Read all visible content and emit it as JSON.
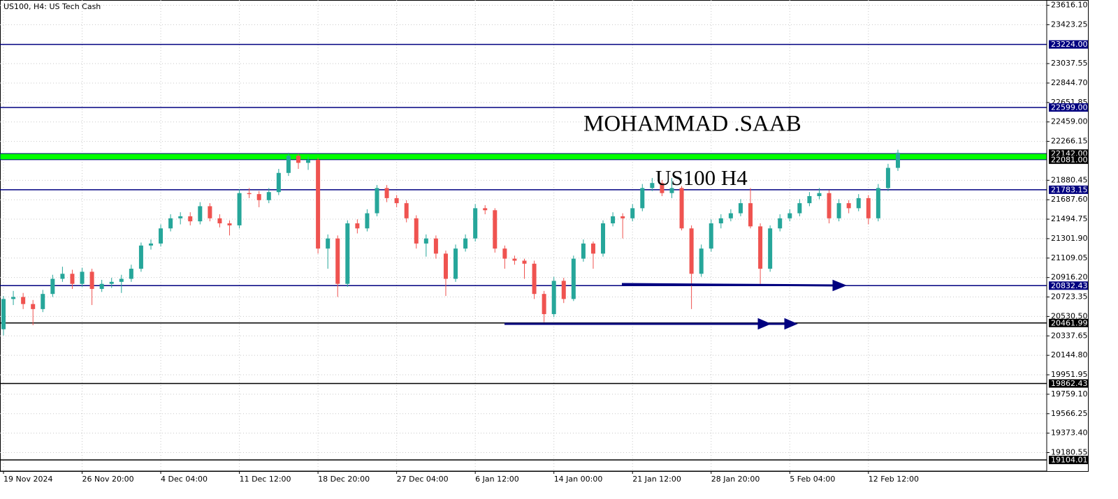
{
  "chart_data": {
    "type": "candlestick",
    "title": "US100, H4:  US Tech Cash",
    "annotations": [
      "MOHAMMAD .SAAB",
      "US100 H4"
    ],
    "up_color": "#26a69a",
    "down_color": "#ef5350",
    "grid": true,
    "ylim": [
      18993.7,
      23664.5
    ],
    "yticks": [
      {
        "value": 23616.1,
        "label": "23616.10"
      },
      23423.25,
      23037.55,
      {
        "value": 22844.7,
        "label": "22844.70"
      },
      22651.85,
      {
        "value": 22459,
        "label": "22459.00"
      },
      22266.15,
      21880.45,
      {
        "value": 21687.6,
        "label": "21687.60"
      },
      21494.75,
      {
        "value": 21301.9,
        "label": "21301.90"
      },
      21109.05,
      {
        "value": 20916.2,
        "label": "20916.20"
      },
      20723.35,
      {
        "value": 20530.5,
        "label": "20530.50"
      },
      20337.65,
      {
        "value": 20144.8,
        "label": "20144.80"
      },
      19951.95,
      {
        "value": 19759.1,
        "label": "19759.10"
      },
      19566.25,
      {
        "value": 19373.4,
        "label": "19373.40"
      },
      19180.55
    ],
    "levels": [
      {
        "value": 23224,
        "label": "23224.00",
        "color": "#000080"
      },
      {
        "value": 22599,
        "label": "22599.00",
        "color": "#000080"
      },
      {
        "value": 21783.15,
        "label": "21783.15",
        "color": "#000080"
      },
      {
        "value": 20832.43,
        "label": "20832.43",
        "color": "#000080"
      },
      {
        "value": 20461.99,
        "label": "20461.99",
        "color": "#000000"
      },
      {
        "value": 19862.43,
        "label": "19862.43",
        "color": "#000000"
      },
      {
        "value": 19104.01,
        "label": "19104.01",
        "color": "#000000"
      }
    ],
    "zone": {
      "low": {
        "value": 22081,
        "label": "22081.00"
      },
      "high": {
        "value": 22142,
        "label": "22142.00"
      },
      "color": "#00ff00"
    },
    "categories": [
      "19 Nov 2024",
      null,
      null,
      null,
      null,
      null,
      null,
      null,
      "26 Nov 20:00",
      null,
      null,
      null,
      null,
      null,
      null,
      null,
      "4 Dec 04:00",
      null,
      null,
      null,
      null,
      null,
      null,
      null,
      "11 Dec 12:00",
      null,
      null,
      null,
      null,
      null,
      null,
      null,
      "18 Dec 20:00",
      null,
      null,
      null,
      null,
      null,
      null,
      null,
      "27 Dec 04:00",
      null,
      null,
      null,
      null,
      null,
      null,
      null,
      "6 Jan 12:00",
      null,
      null,
      null,
      null,
      null,
      null,
      null,
      "14 Jan 00:00",
      null,
      null,
      null,
      null,
      null,
      null,
      null,
      "21 Jan 12:00",
      null,
      null,
      null,
      null,
      null,
      null,
      null,
      "28 Jan 20:00",
      null,
      null,
      null,
      null,
      null,
      null,
      null,
      "5 Feb 04:00",
      null,
      null,
      null,
      null,
      null,
      null,
      null,
      "12 Feb 12:00",
      null,
      null,
      null
    ],
    "ohlc": [
      [
        20400,
        20730,
        20340,
        20700
      ],
      [
        20700,
        20780,
        20640,
        20720
      ],
      [
        20720,
        20760,
        20600,
        20650
      ],
      [
        20650,
        20690,
        20440,
        20600
      ],
      [
        20600,
        20790,
        20570,
        20750
      ],
      [
        20750,
        20940,
        20720,
        20900
      ],
      [
        20900,
        21020,
        20870,
        20950
      ],
      [
        20950,
        20990,
        20800,
        20850
      ],
      [
        20850,
        21010,
        20820,
        20970
      ],
      [
        20970,
        21000,
        20640,
        20800
      ],
      [
        20800,
        20890,
        20770,
        20850
      ],
      [
        20850,
        20910,
        20810,
        20870
      ],
      [
        20870,
        20940,
        20760,
        20900
      ],
      [
        20900,
        21040,
        20870,
        21000
      ],
      [
        21000,
        21260,
        20970,
        21230
      ],
      [
        21230,
        21290,
        21190,
        21250
      ],
      [
        21250,
        21440,
        21220,
        21400
      ],
      [
        21400,
        21540,
        21370,
        21500
      ],
      [
        21500,
        21560,
        21440,
        21520
      ],
      [
        21520,
        21560,
        21430,
        21470
      ],
      [
        21470,
        21660,
        21440,
        21620
      ],
      [
        21620,
        21650,
        21470,
        21500
      ],
      [
        21500,
        21540,
        21410,
        21450
      ],
      [
        21450,
        21480,
        21330,
        21430
      ],
      [
        21430,
        21790,
        21400,
        21750
      ],
      [
        21750,
        21800,
        21700,
        21740
      ],
      [
        21740,
        21770,
        21610,
        21680
      ],
      [
        21680,
        21800,
        21650,
        21760
      ],
      [
        21760,
        21990,
        21730,
        21950
      ],
      [
        21950,
        22150,
        21920,
        22120
      ],
      [
        22120,
        22140,
        21990,
        22050
      ],
      [
        22050,
        22110,
        21980,
        22080
      ],
      [
        22080,
        22100,
        21150,
        21200
      ],
      [
        21200,
        21340,
        21000,
        21300
      ],
      [
        21300,
        21330,
        20720,
        20850
      ],
      [
        20850,
        21480,
        20820,
        21450
      ],
      [
        21450,
        21490,
        21350,
        21400
      ],
      [
        21400,
        21590,
        21370,
        21550
      ],
      [
        21550,
        21830,
        21520,
        21800
      ],
      [
        21800,
        21830,
        21660,
        21700
      ],
      [
        21700,
        21730,
        21610,
        21650
      ],
      [
        21650,
        21680,
        21460,
        21500
      ],
      [
        21500,
        21530,
        21200,
        21250
      ],
      [
        21250,
        21340,
        21120,
        21300
      ],
      [
        21300,
        21330,
        21100,
        21150
      ],
      [
        21150,
        21180,
        20730,
        20900
      ],
      [
        20900,
        21240,
        20870,
        21200
      ],
      [
        21200,
        21340,
        21170,
        21300
      ],
      [
        21300,
        21640,
        21270,
        21600
      ],
      [
        21600,
        21630,
        21540,
        21580
      ],
      [
        21580,
        21600,
        21160,
        21200
      ],
      [
        21200,
        21230,
        21000,
        21100
      ],
      [
        21100,
        21130,
        21040,
        21080
      ],
      [
        21080,
        21100,
        20900,
        21050
      ],
      [
        21050,
        21080,
        20700,
        20750
      ],
      [
        20750,
        20780,
        20470,
        20550
      ],
      [
        20550,
        20920,
        20520,
        20880
      ],
      [
        20880,
        20910,
        20660,
        20700
      ],
      [
        20700,
        21130,
        20680,
        21100
      ],
      [
        21100,
        21290,
        21070,
        21250
      ],
      [
        21250,
        21270,
        21000,
        21150
      ],
      [
        21150,
        21480,
        21120,
        21450
      ],
      [
        21450,
        21560,
        21420,
        21520
      ],
      [
        21520,
        21550,
        21300,
        21500
      ],
      [
        21500,
        21640,
        21470,
        21600
      ],
      [
        21600,
        21840,
        21570,
        21800
      ],
      [
        21800,
        21900,
        21770,
        21850
      ],
      [
        21850,
        21880,
        21720,
        21750
      ],
      [
        21750,
        21900,
        21700,
        21800
      ],
      [
        21800,
        21820,
        21380,
        21400
      ],
      [
        21400,
        21430,
        20600,
        20950
      ],
      [
        20950,
        21240,
        20920,
        21200
      ],
      [
        21200,
        21490,
        21170,
        21450
      ],
      [
        21450,
        21540,
        21400,
        21500
      ],
      [
        21500,
        21590,
        21470,
        21550
      ],
      [
        21550,
        21690,
        21520,
        21650
      ],
      [
        21650,
        21800,
        21400,
        21420
      ],
      [
        21420,
        21450,
        20850,
        21000
      ],
      [
        21000,
        21430,
        20970,
        21400
      ],
      [
        21400,
        21540,
        21370,
        21500
      ],
      [
        21500,
        21590,
        21470,
        21550
      ],
      [
        21550,
        21690,
        21520,
        21650
      ],
      [
        21650,
        21760,
        21620,
        21720
      ],
      [
        21720,
        21800,
        21690,
        21750
      ],
      [
        21750,
        21780,
        21450,
        21500
      ],
      [
        21500,
        21690,
        21470,
        21650
      ],
      [
        21650,
        21680,
        21550,
        21600
      ],
      [
        21600,
        21740,
        21570,
        21700
      ],
      [
        21700,
        21730,
        21440,
        21500
      ],
      [
        21500,
        21840,
        21470,
        21800
      ],
      [
        21800,
        22040,
        21770,
        22000
      ],
      [
        22000,
        22180,
        21970,
        22150
      ]
    ]
  }
}
